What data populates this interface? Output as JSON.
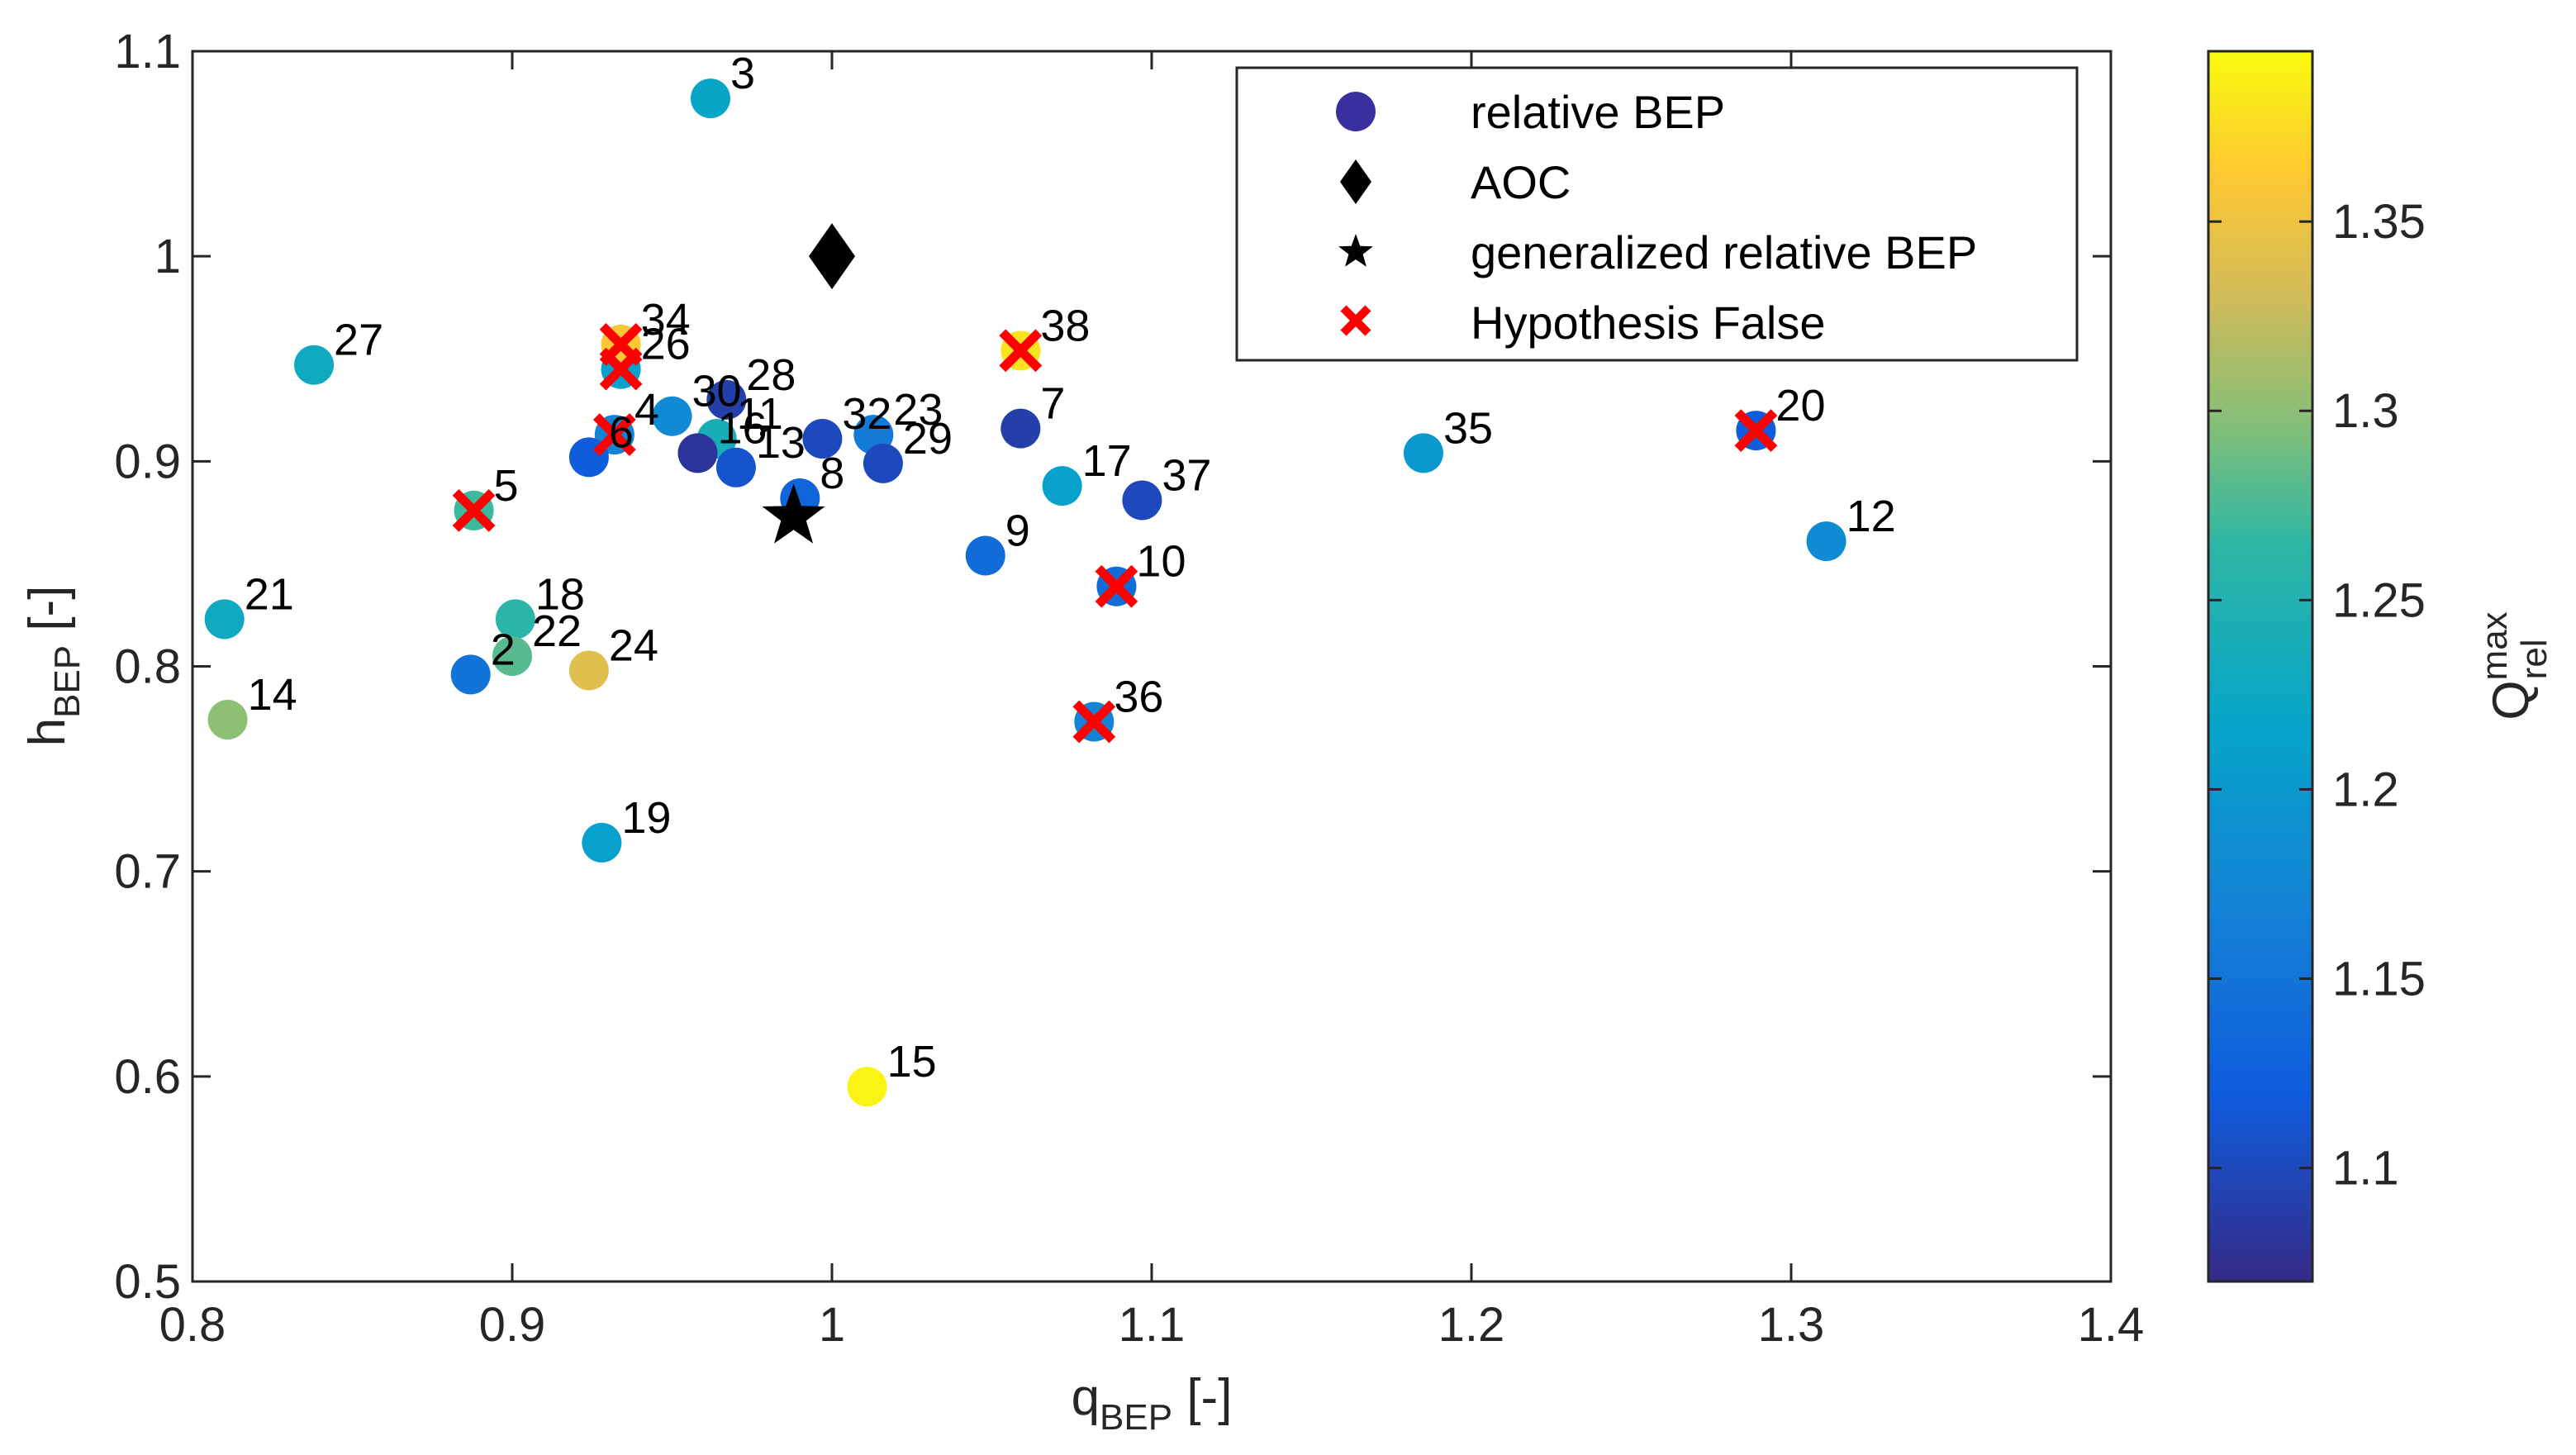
{
  "chart_data": {
    "type": "scatter",
    "xlabel": {
      "base": "q",
      "sub": "BEP",
      "suffix": " [-]"
    },
    "ylabel": {
      "base": "h",
      "sub": "BEP",
      "suffix": " [-]"
    },
    "xlim": [
      0.8,
      1.4
    ],
    "ylim": [
      0.5,
      1.1
    ],
    "xticks": [
      0.8,
      0.9,
      1.0,
      1.1,
      1.2,
      1.3,
      1.4
    ],
    "xtick_labels": [
      "0.8",
      "0.9",
      "1",
      "1.1",
      "1.2",
      "1.3",
      "1.4"
    ],
    "yticks": [
      0.5,
      0.6,
      0.7,
      0.8,
      0.9,
      1.0,
      1.1
    ],
    "ytick_labels": [
      "0.5",
      "0.6",
      "0.7",
      "0.8",
      "0.9",
      "1",
      "1.1"
    ],
    "grid": false,
    "legend_position": "top-right",
    "legend": [
      {
        "label": "relative BEP",
        "marker": "circle",
        "color": "#3a2f9e"
      },
      {
        "label": "AOC",
        "marker": "diamond",
        "color": "#000000"
      },
      {
        "label": "generalized relative BEP",
        "marker": "star",
        "color": "#000000"
      },
      {
        "label": "Hypothesis False",
        "marker": "x",
        "color": "#ff0000"
      }
    ],
    "colorbar": {
      "label": {
        "base": "Q",
        "sup": "max",
        "sub": "rel"
      },
      "range": [
        1.07,
        1.395
      ],
      "ticks": [
        1.1,
        1.15,
        1.2,
        1.25,
        1.3,
        1.35
      ],
      "tick_labels": [
        "1.1",
        "1.15",
        "1.2",
        "1.25",
        "1.3",
        "1.35"
      ],
      "colormap": "parula"
    },
    "points": [
      {
        "id": "2",
        "q": 0.887,
        "h": 0.796,
        "c": 1.15
      },
      {
        "id": "3",
        "q": 0.962,
        "h": 1.077,
        "c": 1.22
      },
      {
        "id": "4",
        "q": 0.932,
        "h": 0.913,
        "c": 1.17
      },
      {
        "id": "5",
        "q": 0.888,
        "h": 0.876,
        "c": 1.27
      },
      {
        "id": "6",
        "q": 0.924,
        "h": 0.902,
        "c": 1.12
      },
      {
        "id": "7",
        "q": 1.059,
        "h": 0.916,
        "c": 1.09
      },
      {
        "id": "8",
        "q": 0.99,
        "h": 0.882,
        "c": 1.13
      },
      {
        "id": "9",
        "q": 1.048,
        "h": 0.854,
        "c": 1.14
      },
      {
        "id": "10",
        "q": 1.089,
        "h": 0.839,
        "c": 1.14
      },
      {
        "id": "11",
        "q": 0.964,
        "h": 0.911,
        "c": 1.24
      },
      {
        "id": "12",
        "q": 1.311,
        "h": 0.861,
        "c": 1.18
      },
      {
        "id": "13",
        "q": 0.97,
        "h": 0.897,
        "c": 1.11
      },
      {
        "id": "14",
        "q": 0.811,
        "h": 0.774,
        "c": 1.3
      },
      {
        "id": "15",
        "q": 1.011,
        "h": 0.595,
        "c": 1.39
      },
      {
        "id": "16",
        "q": 0.958,
        "h": 0.904,
        "c": 1.08
      },
      {
        "id": "17",
        "q": 1.072,
        "h": 0.888,
        "c": 1.21
      },
      {
        "id": "18",
        "q": 0.901,
        "h": 0.823,
        "c": 1.26
      },
      {
        "id": "19",
        "q": 0.928,
        "h": 0.714,
        "c": 1.21
      },
      {
        "id": "20",
        "q": 1.289,
        "h": 0.915,
        "c": 1.12
      },
      {
        "id": "21",
        "q": 0.81,
        "h": 0.823,
        "c": 1.23
      },
      {
        "id": "22",
        "q": 0.9,
        "h": 0.805,
        "c": 1.28
      },
      {
        "id": "23",
        "q": 1.013,
        "h": 0.913,
        "c": 1.16
      },
      {
        "id": "24",
        "q": 0.924,
        "h": 0.798,
        "c": 1.34
      },
      {
        "id": "26",
        "q": 0.934,
        "h": 0.945,
        "c": 1.21
      },
      {
        "id": "27",
        "q": 0.838,
        "h": 0.947,
        "c": 1.23
      },
      {
        "id": "28",
        "q": 0.967,
        "h": 0.93,
        "c": 1.09
      },
      {
        "id": "29",
        "q": 1.016,
        "h": 0.899,
        "c": 1.1
      },
      {
        "id": "30",
        "q": 0.95,
        "h": 0.922,
        "c": 1.18
      },
      {
        "id": "32",
        "q": 0.997,
        "h": 0.911,
        "c": 1.1
      },
      {
        "id": "34",
        "q": 0.934,
        "h": 0.957,
        "c": 1.36
      },
      {
        "id": "35",
        "q": 1.185,
        "h": 0.904,
        "c": 1.2
      },
      {
        "id": "36",
        "q": 1.082,
        "h": 0.773,
        "c": 1.17
      },
      {
        "id": "37",
        "q": 1.097,
        "h": 0.881,
        "c": 1.1
      },
      {
        "id": "38",
        "q": 1.059,
        "h": 0.954,
        "c": 1.38
      }
    ],
    "aoc": {
      "q": 1.0,
      "h": 1.0
    },
    "generalized_bep": {
      "q": 0.988,
      "h": 0.873
    },
    "hypothesis_false_ids": [
      "5",
      "4",
      "26",
      "34",
      "38",
      "10",
      "36",
      "20"
    ]
  }
}
